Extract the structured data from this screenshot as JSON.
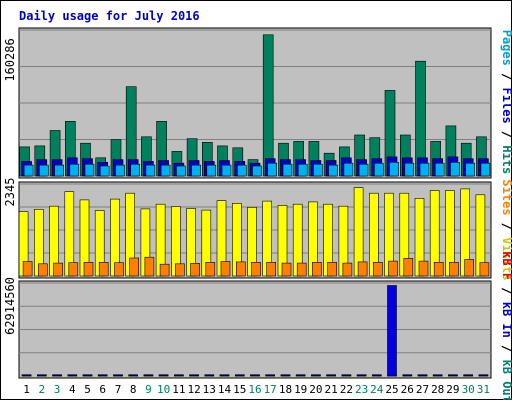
{
  "chart_data": {
    "type": "bar",
    "title": "Daily usage for July 2016",
    "days": [
      "1",
      "2",
      "3",
      "4",
      "5",
      "6",
      "7",
      "8",
      "9",
      "10",
      "11",
      "12",
      "13",
      "14",
      "15",
      "16",
      "17",
      "18",
      "19",
      "20",
      "21",
      "22",
      "23",
      "24",
      "25",
      "26",
      "27",
      "28",
      "29",
      "30",
      "31"
    ],
    "weekend_days": [
      "2",
      "3",
      "9",
      "10",
      "16",
      "17",
      "23",
      "24",
      "30",
      "31"
    ],
    "panels": [
      {
        "id": "hits",
        "ymax_label": "160286",
        "ymax": 160286,
        "legend": [
          {
            "text": "Pages",
            "color": "#00a0d0"
          },
          {
            "text": " / ",
            "color": "#000000"
          },
          {
            "text": "Files",
            "color": "#0000c8"
          },
          {
            "text": " / ",
            "color": "#000000"
          },
          {
            "text": "Hits",
            "color": "#00806a"
          }
        ],
        "series": [
          {
            "name": "Hits",
            "color": "#00805c",
            "values": [
              32000,
              33000,
              50000,
              60000,
              36000,
              20000,
              40000,
              98000,
              43000,
              60000,
              27000,
              41000,
              37000,
              33000,
              31000,
              18000,
              155000,
              36000,
              38000,
              38000,
              25000,
              32000,
              45000,
              42000,
              94000,
              45000,
              126000,
              38000,
              55000,
              36000,
              43000
            ]
          },
          {
            "name": "Files",
            "color": "#0000c8",
            "values": [
              16000,
              18000,
              18000,
              20000,
              19000,
              15000,
              18000,
              18000,
              16000,
              17000,
              14000,
              17000,
              16000,
              17000,
              16000,
              14000,
              19000,
              18000,
              18000,
              17000,
              17000,
              20000,
              18000,
              19000,
              21000,
              20000,
              20000,
              19000,
              21000,
              19000,
              19000
            ]
          },
          {
            "name": "Pages",
            "color": "#00b0f0",
            "values": [
              12000,
              12000,
              12000,
              13000,
              13000,
              11000,
              12000,
              13000,
              12000,
              12000,
              11000,
              12000,
              12000,
              12000,
              12000,
              11000,
              14000,
              13000,
              13000,
              13000,
              12000,
              14000,
              13000,
              14000,
              15000,
              14000,
              14000,
              14000,
              15000,
              14000,
              14000
            ]
          }
        ]
      },
      {
        "id": "visits",
        "ymax_label": "2345",
        "ymax": 2345,
        "legend": [
          {
            "text": "Sites",
            "color": "#ff8000"
          },
          {
            "text": " / ",
            "color": "#000000"
          },
          {
            "text": "Visits",
            "color": "#c8c800"
          }
        ],
        "series": [
          {
            "name": "Visits",
            "color": "#ffff00",
            "values": [
              1640,
              1700,
              1780,
              2150,
              1940,
              1670,
              1960,
              2110,
              1710,
              1830,
              1770,
              1720,
              1680,
              1920,
              1850,
              1750,
              1910,
              1800,
              1830,
              1890,
              1830,
              1780,
              2250,
              2110,
              2110,
              2110,
              1980,
              2180,
              2180,
              2220,
              2070
            ]
          },
          {
            "name": "Sites",
            "color": "#ff8000",
            "values": [
              370,
              310,
              330,
              340,
              350,
              350,
              340,
              460,
              480,
              300,
              310,
              320,
              350,
              370,
              360,
              350,
              350,
              330,
              330,
              350,
              350,
              330,
              360,
              350,
              380,
              450,
              380,
              350,
              350,
              420,
              340
            ]
          }
        ]
      },
      {
        "id": "kbytes",
        "ymax_label": "62914560",
        "ymax": 62914560,
        "legend": [
          {
            "text": "kB F",
            "color": "#e00000"
          },
          {
            "text": " / ",
            "color": "#000000"
          },
          {
            "text": "kB In",
            "color": "#0000c8"
          },
          {
            "text": " / ",
            "color": "#000000"
          },
          {
            "text": "kB Out",
            "color": "#008070"
          }
        ],
        "series": [
          {
            "name": "kB Out",
            "color": "#008060",
            "values": [
              900000,
              900000,
              900000,
              900000,
              900000,
              900000,
              900000,
              900000,
              900000,
              900000,
              900000,
              900000,
              900000,
              900000,
              900000,
              900000,
              900000,
              900000,
              900000,
              900000,
              900000,
              900000,
              900000,
              900000,
              900000,
              900000,
              900000,
              900000,
              900000,
              900000,
              900000
            ]
          },
          {
            "name": "kB In",
            "color": "#0000e0",
            "values": [
              300000,
              300000,
              300000,
              300000,
              300000,
              300000,
              300000,
              300000,
              300000,
              300000,
              300000,
              300000,
              300000,
              300000,
              300000,
              300000,
              300000,
              300000,
              300000,
              300000,
              300000,
              300000,
              300000,
              300000,
              61200000,
              300000,
              300000,
              300000,
              300000,
              300000,
              300000
            ]
          }
        ]
      }
    ]
  }
}
